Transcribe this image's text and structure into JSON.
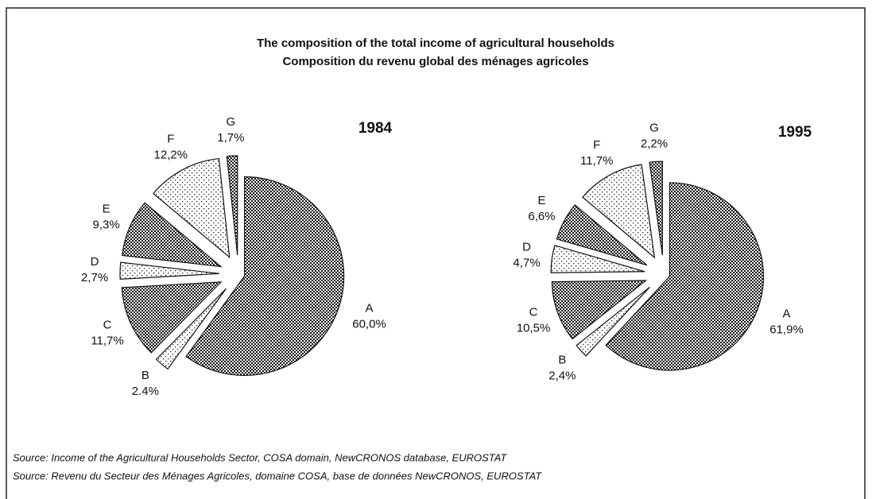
{
  "title": "The composition of the total income of agricultural households",
  "subtitle": "Composition du revenu global des ménages agricoles",
  "source": [
    "Source: Income of the Agricultural Households Sector, COSA domain, NewCRONOS database, EUROSTAT",
    "Source: Revenu du Secteur des Ménages Agricoles, domaine COSA, base de données NewCRONOS, EUROSTAT"
  ],
  "chart_data": [
    {
      "type": "pie",
      "title": "1984",
      "categories": [
        "A",
        "B",
        "C",
        "D",
        "E",
        "F",
        "G"
      ],
      "values": [
        60.0,
        2.4,
        11.7,
        2.7,
        9.3,
        12.2,
        1.7
      ],
      "value_labels": [
        "60,0%",
        "2.4%",
        "11,7%",
        "2,7%",
        "9,3%",
        "12,2%",
        "1,7%"
      ],
      "patterns": [
        "checker",
        "dots",
        "checker",
        "dots",
        "checker",
        "dots",
        "checker"
      ]
    },
    {
      "type": "pie",
      "title": "1995",
      "categories": [
        "A",
        "B",
        "C",
        "D",
        "E",
        "F",
        "G"
      ],
      "values": [
        61.9,
        2.4,
        10.5,
        4.7,
        6.6,
        11.7,
        2.2
      ],
      "value_labels": [
        "61,9%",
        "2,4%",
        "10,5%",
        "4,7%",
        "6,6%",
        "11,7%",
        "2,2%"
      ],
      "patterns": [
        "checker",
        "dots",
        "checker",
        "dots",
        "checker",
        "dots",
        "checker"
      ]
    }
  ]
}
